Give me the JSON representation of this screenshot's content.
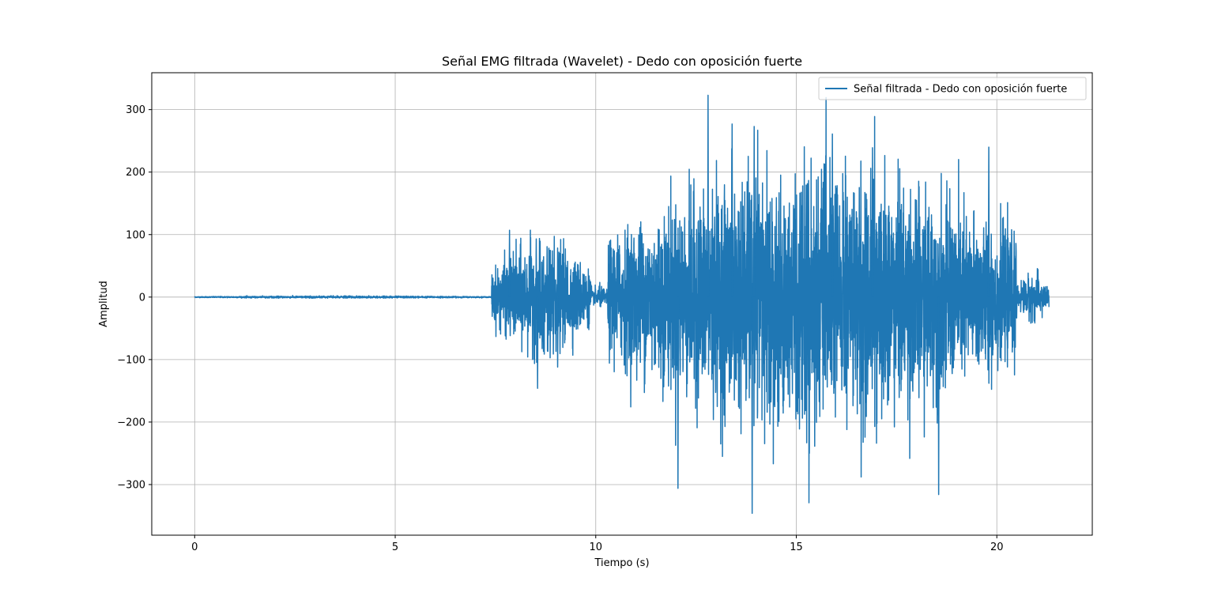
{
  "chart_data": {
    "type": "line",
    "title": "Señal EMG filtrada (Wavelet) - Dedo con oposición fuerte",
    "xlabel": "Tiempo (s)",
    "ylabel": "Amplitud",
    "xlim": [
      -1.07,
      22.38
    ],
    "ylim": [
      -381,
      359
    ],
    "xticks": [
      0,
      5,
      10,
      15,
      20
    ],
    "xtick_labels": [
      "0",
      "5",
      "10",
      "15",
      "20"
    ],
    "yticks": [
      -300,
      -200,
      -100,
      0,
      100,
      200,
      300
    ],
    "ytick_labels": [
      "−300",
      "−200",
      "−100",
      "0",
      "100",
      "200",
      "300"
    ],
    "grid": true,
    "legend_position": "top-right",
    "series": [
      {
        "name": "Señal filtrada - Dedo con oposición fuerte",
        "color": "#1f77b4",
        "x_range": [
          0,
          21.3
        ],
        "envelope_segments": [
          {
            "x": [
              0.0,
              7.4
            ],
            "peak_min": -2,
            "peak_max": 3
          },
          {
            "x": [
              7.4,
              9.9
            ],
            "peak_min": -146,
            "peak_max": 108
          },
          {
            "x": [
              9.9,
              10.3
            ],
            "peak_min": -30,
            "peak_max": 30
          },
          {
            "x": [
              10.3,
              20.5
            ],
            "peak_min": -346,
            "peak_max": 323
          },
          {
            "x": [
              20.5,
              21.3
            ],
            "peak_min": -60,
            "peak_max": 62
          }
        ],
        "notable_peaks": [
          {
            "x": 7.85,
            "y": 107
          },
          {
            "x": 8.55,
            "y": -146
          },
          {
            "x": 9.05,
            "y": -112
          },
          {
            "x": 12.05,
            "y": -306
          },
          {
            "x": 12.8,
            "y": 323
          },
          {
            "x": 13.4,
            "y": 277
          },
          {
            "x": 13.9,
            "y": -346
          },
          {
            "x": 13.95,
            "y": 273
          },
          {
            "x": 15.9,
            "y": 261
          },
          {
            "x": 16.9,
            "y": 239
          },
          {
            "x": 18.55,
            "y": -316
          },
          {
            "x": 19.8,
            "y": 240
          }
        ]
      }
    ]
  }
}
